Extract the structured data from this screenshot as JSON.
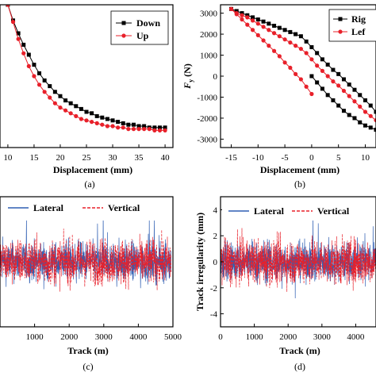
{
  "chart_data": [
    {
      "id": "a",
      "type": "line",
      "xlabel": "Displacement (mm)",
      "ylabel": "",
      "caption": "(a)",
      "xticks": [
        10,
        15,
        20,
        25,
        30,
        35,
        40
      ],
      "xlim": [
        8.5,
        41.5
      ],
      "ylim": [
        0,
        1
      ],
      "legend": "top-right",
      "series": [
        {
          "name": "Down",
          "color": "#000000",
          "marker": "square",
          "x": [
            10,
            11,
            12,
            13,
            14,
            15,
            16,
            17,
            18,
            19,
            20,
            21,
            22,
            23,
            24,
            25,
            26,
            27,
            28,
            29,
            30,
            31,
            32,
            33,
            34,
            35,
            36,
            37,
            38,
            39,
            40
          ],
          "y": [
            1.0,
            0.89,
            0.8,
            0.72,
            0.65,
            0.58,
            0.52,
            0.47,
            0.43,
            0.39,
            0.36,
            0.33,
            0.31,
            0.29,
            0.27,
            0.25,
            0.24,
            0.22,
            0.21,
            0.2,
            0.19,
            0.18,
            0.17,
            0.16,
            0.16,
            0.15,
            0.15,
            0.14,
            0.14,
            0.14,
            0.14
          ]
        },
        {
          "name": "Up",
          "color": "#e8202a",
          "marker": "circle",
          "x": [
            10,
            11,
            12,
            13,
            14,
            15,
            16,
            17,
            18,
            19,
            20,
            21,
            22,
            23,
            24,
            25,
            26,
            27,
            28,
            29,
            30,
            31,
            32,
            33,
            34,
            35,
            36,
            37,
            38,
            39,
            40
          ],
          "y": [
            1.0,
            0.88,
            0.76,
            0.66,
            0.57,
            0.5,
            0.44,
            0.39,
            0.35,
            0.31,
            0.28,
            0.26,
            0.24,
            0.22,
            0.2,
            0.19,
            0.18,
            0.17,
            0.16,
            0.15,
            0.15,
            0.14,
            0.14,
            0.13,
            0.13,
            0.13,
            0.13,
            0.13,
            0.12,
            0.12,
            0.12
          ]
        }
      ]
    },
    {
      "id": "b",
      "type": "line",
      "xlabel": "Displacement (mm)",
      "ylabel": "F",
      "ylabel_sub": "y",
      "ylabel_unit": " (N)",
      "caption": "(b)",
      "xticks": [
        -15,
        -10,
        -5,
        0,
        5,
        10
      ],
      "yticks": [
        -3000,
        -2000,
        -1000,
        0,
        1000,
        2000,
        3000
      ],
      "xlim": [
        -17,
        12
      ],
      "ylim": [
        -3400,
        3400
      ],
      "legend": "top-right",
      "series": [
        {
          "name": "Rig",
          "color": "#000000",
          "marker": "square",
          "x": [
            -15,
            -14,
            -13,
            -12,
            -11,
            -10,
            -9,
            -8,
            -7,
            -6,
            -5,
            -4,
            -3,
            -2,
            -1,
            0,
            1,
            2,
            3,
            4,
            5,
            6,
            7,
            8,
            9,
            10,
            11,
            12,
            0,
            1,
            2,
            3,
            4,
            5,
            6,
            7,
            8,
            9,
            10,
            11,
            12
          ],
          "y": [
            3200,
            3100,
            3000,
            2900,
            2800,
            2700,
            2600,
            2500,
            2400,
            2300,
            2200,
            2100,
            2000,
            1900,
            1650,
            1380,
            1100,
            800,
            550,
            300,
            100,
            -150,
            -400,
            -650,
            -900,
            -1150,
            -1400,
            -1700,
            0,
            -300,
            -600,
            -900,
            -1150,
            -1400,
            -1650,
            -1850,
            -2000,
            -2200,
            -2350,
            -2450,
            -2550
          ]
        },
        {
          "name": "Lef",
          "color": "#e8202a",
          "marker": "circle",
          "x": [
            -15,
            -14,
            -13,
            -12,
            -11,
            -10,
            -9,
            -8,
            -7,
            -6,
            -5,
            -4,
            -3,
            -2,
            -1,
            0,
            1,
            2,
            3,
            4,
            5,
            6,
            7,
            8,
            9,
            10,
            11,
            12,
            -15,
            -14,
            -13,
            -12,
            -11,
            -10,
            -9,
            -8,
            -7,
            -6,
            -5,
            -4,
            -3,
            -2,
            -1,
            0
          ],
          "y": [
            3200,
            3000,
            2900,
            2800,
            2650,
            2500,
            2350,
            2200,
            2050,
            1900,
            1750,
            1600,
            1450,
            1300,
            1100,
            800,
            500,
            250,
            0,
            -250,
            -450,
            -700,
            -950,
            -1200,
            -1450,
            -1700,
            -1900,
            -2100,
            3200,
            2950,
            2700,
            2450,
            2200,
            1950,
            1700,
            1450,
            1200,
            950,
            650,
            400,
            100,
            -150,
            -500,
            -850
          ]
        }
      ]
    },
    {
      "id": "c",
      "type": "line",
      "xlabel": "Track (m)",
      "ylabel": "",
      "caption": "(c)",
      "xticks": [
        1000,
        2000,
        3000,
        4000,
        5000
      ],
      "xlim": [
        0,
        5000
      ],
      "ylim": [
        -5,
        5
      ],
      "legend": "top",
      "series": [
        {
          "name": "Lateral",
          "color": "#2f5fb3",
          "style": "solid"
        },
        {
          "name": "Vertical",
          "color": "#e8202a",
          "style": "dashed"
        }
      ]
    },
    {
      "id": "d",
      "type": "line",
      "xlabel": "Track (m)",
      "ylabel": "Track irregularity (mm)",
      "caption": "(d)",
      "xticks": [
        0,
        1000,
        2000,
        3000,
        4000
      ],
      "yticks": [
        -4,
        -2,
        0,
        2,
        4
      ],
      "xlim": [
        0,
        4600
      ],
      "ylim": [
        -5,
        5
      ],
      "legend": "top",
      "series": [
        {
          "name": "Lateral",
          "color": "#2f5fb3",
          "style": "solid"
        },
        {
          "name": "Vertical",
          "color": "#e8202a",
          "style": "dashed"
        }
      ]
    }
  ]
}
